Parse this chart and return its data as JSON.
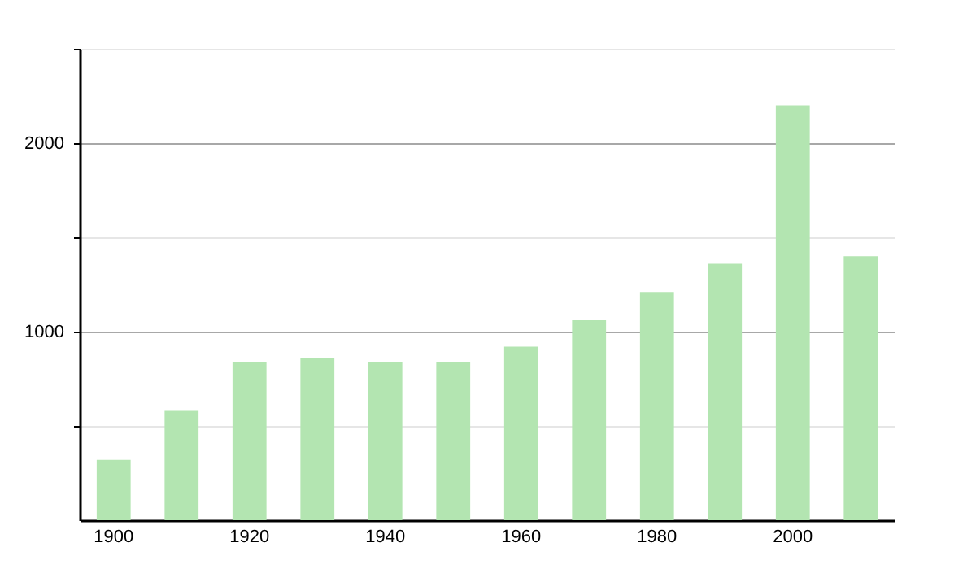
{
  "chart_data": {
    "type": "bar",
    "categories": [
      "1900",
      null,
      "1920",
      null,
      "1940",
      null,
      "1960",
      null,
      "1980",
      null,
      "2000",
      null
    ],
    "values": [
      320,
      580,
      840,
      860,
      840,
      840,
      920,
      1060,
      1210,
      1360,
      2200,
      1400
    ],
    "color": "#b3e5b1",
    "ylim": [
      0,
      2500
    ],
    "yticks": [
      {
        "value": 500,
        "label": null
      },
      1000,
      {
        "value": 1500,
        "label": null
      },
      2000,
      {
        "value": 2500,
        "label": null
      }
    ],
    "grid": "y"
  }
}
